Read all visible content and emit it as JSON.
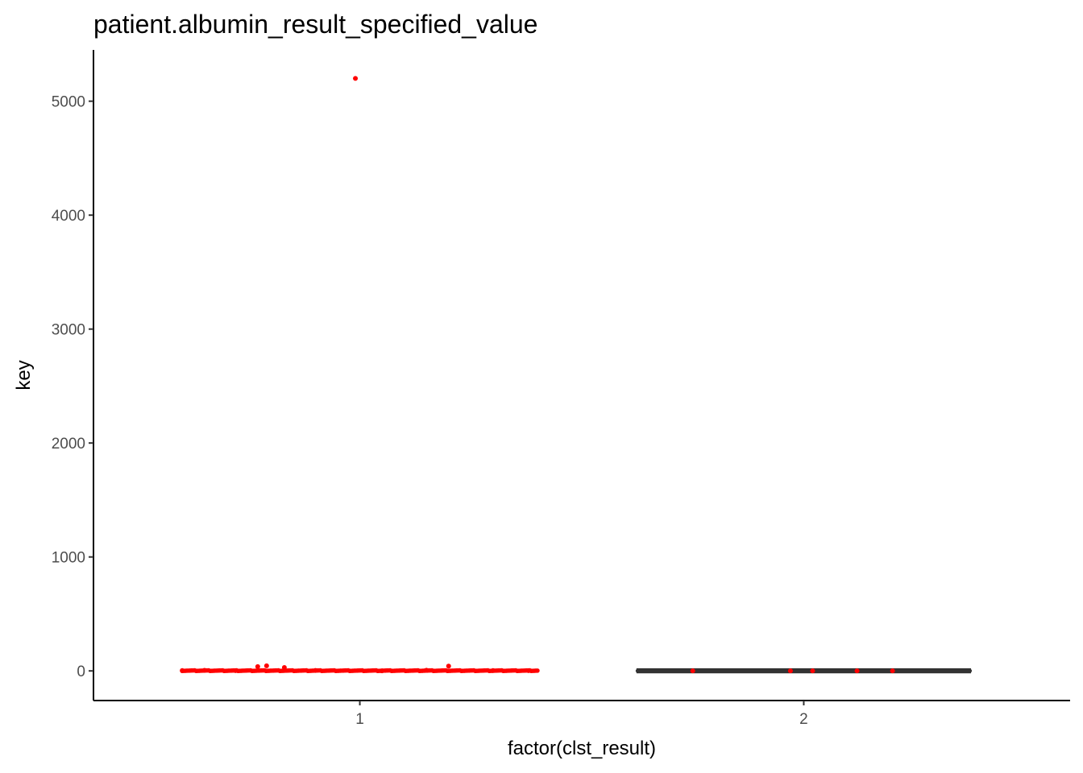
{
  "chart_data": {
    "type": "scatter",
    "title": "patient.albumin_result_specified_value",
    "xlabel": "factor(clst_result)",
    "ylabel": "key",
    "categories": [
      "1",
      "2"
    ],
    "y_ticks": [
      0,
      1000,
      2000,
      3000,
      4000,
      5000
    ],
    "y_tick_labels": [
      "0",
      "1000",
      "2000",
      "3000",
      "4000",
      "5000"
    ],
    "ylim": [
      -260,
      5450
    ],
    "grid": false,
    "legend": "none",
    "colors": {
      "outlier_points": "#ff0000",
      "box": "#333333",
      "axis": "#000000",
      "tick_text": "#4d4d4d"
    },
    "series": [
      {
        "category": "1",
        "box": {
          "q1": 0,
          "median": 2,
          "q3": 4
        },
        "points": [
          {
            "x": 0.99,
            "y": 5200
          },
          {
            "x": 0.77,
            "y": 38
          },
          {
            "x": 0.79,
            "y": 45
          },
          {
            "x": 0.83,
            "y": 30
          },
          {
            "x": 1.2,
            "y": 42
          },
          {
            "x": 0.6,
            "y": 3
          },
          {
            "x": 0.65,
            "y": 5
          },
          {
            "x": 0.72,
            "y": 2
          },
          {
            "x": 0.9,
            "y": 4
          },
          {
            "x": 1.05,
            "y": 1
          },
          {
            "x": 1.15,
            "y": 6
          },
          {
            "x": 1.3,
            "y": 3
          },
          {
            "x": 1.38,
            "y": 2
          }
        ]
      },
      {
        "category": "2",
        "box": {
          "q1": 0,
          "median": 1,
          "q3": 2
        },
        "points": [
          {
            "x": 1.75,
            "y": 1
          },
          {
            "x": 1.97,
            "y": 1
          },
          {
            "x": 2.02,
            "y": 1
          },
          {
            "x": 2.12,
            "y": 1
          },
          {
            "x": 2.2,
            "y": 1
          }
        ]
      }
    ]
  }
}
